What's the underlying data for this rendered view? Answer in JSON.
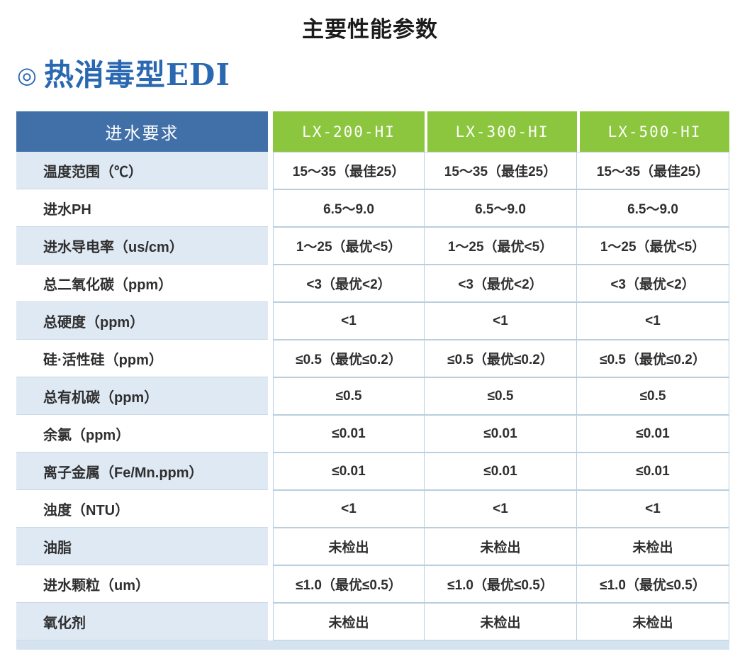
{
  "page": {
    "title": "主要性能参数"
  },
  "section": {
    "bullet": "◎",
    "heading": "热消毒型EDI"
  },
  "colors": {
    "header_blue": "#4170a8",
    "header_green": "#8cc63e",
    "row_alt_blue": "#dfe9f4",
    "cell_border": "#b9cede",
    "heading_blue": "#2a68b2",
    "footer_strip": "#d5e3f1"
  },
  "table": {
    "header": {
      "label": "进水要求",
      "models": [
        "LX-200-HI",
        "LX-300-HI",
        "LX-500-HI"
      ]
    },
    "rows": [
      {
        "label": "温度范围（℃）",
        "values": [
          "15～35（最佳25）",
          "15～35（最佳25）",
          "15～35（最佳25）"
        ]
      },
      {
        "label": "进水PH",
        "values": [
          "6.5～9.0",
          "6.5～9.0",
          "6.5～9.0"
        ]
      },
      {
        "label": "进水导电率（us/cm）",
        "values": [
          "1～25（最优<5）",
          "1～25（最优<5）",
          "1～25（最优<5）"
        ]
      },
      {
        "label": "总二氧化碳（ppm）",
        "values": [
          "<3（最优<2）",
          "<3（最优<2）",
          "<3（最优<2）"
        ]
      },
      {
        "label": "总硬度（ppm）",
        "values": [
          "<1",
          "<1",
          "<1"
        ]
      },
      {
        "label": "硅·活性硅（ppm）",
        "values": [
          "≤0.5（最优≤0.2）",
          "≤0.5（最优≤0.2）",
          "≤0.5（最优≤0.2）"
        ]
      },
      {
        "label": "总有机碳（ppm）",
        "values": [
          "≤0.5",
          "≤0.5",
          "≤0.5"
        ]
      },
      {
        "label": "余氯（ppm）",
        "values": [
          "≤0.01",
          "≤0.01",
          "≤0.01"
        ]
      },
      {
        "label": "离子金属（Fe/Mn.ppm）",
        "values": [
          "≤0.01",
          "≤0.01",
          "≤0.01"
        ]
      },
      {
        "label": "浊度（NTU）",
        "values": [
          "<1",
          "<1",
          "<1"
        ]
      },
      {
        "label": "油脂",
        "values": [
          "未检出",
          "未检出",
          "未检出"
        ]
      },
      {
        "label": "进水颗粒（um）",
        "values": [
          "≤1.0（最优≤0.5）",
          "≤1.0（最优≤0.5）",
          "≤1.0（最优≤0.5）"
        ]
      },
      {
        "label": "氧化剂",
        "values": [
          "未检出",
          "未检出",
          "未检出"
        ]
      }
    ]
  }
}
